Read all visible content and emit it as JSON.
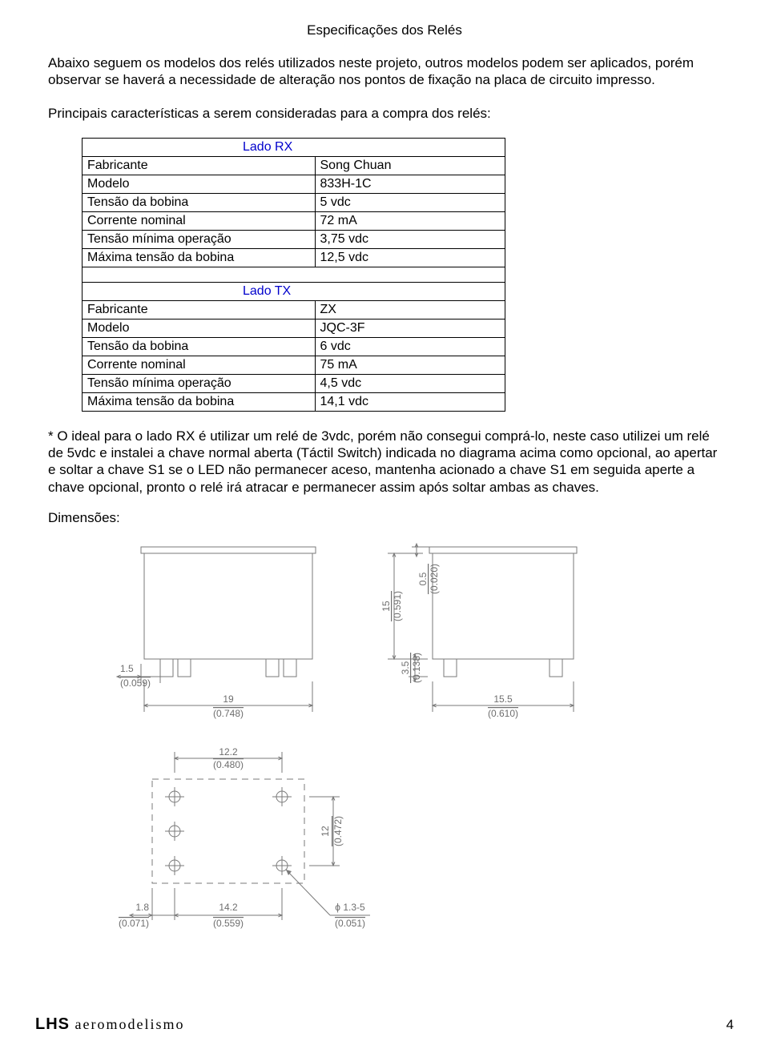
{
  "page": {
    "title": "Especificações dos Relés",
    "intro": "Abaixo seguem os modelos dos relés utilizados neste projeto, outros modelos podem ser aplicados, porém observar se haverá a necessidade de alteração nos pontos de fixação na placa de circuito impresso.",
    "lead": "Principais características a serem consideradas para a compra dos relés:",
    "note": "* O ideal para o lado RX é utilizar um relé de 3vdc, porém não consegui comprá-lo, neste caso utilizei um relé de 5vdc e instalei a chave normal aberta (Táctil Switch) indicada no diagrama acima como opcional, ao apertar e soltar a chave S1 se o LED não permanecer aceso, mantenha acionado a chave S1 em seguida aperte a chave opcional, pronto o relé irá atracar e permanecer assim após soltar ambas as chaves.",
    "dims_label": "Dimensões:",
    "page_number": "4"
  },
  "footer": {
    "brand_lhs": "LHS",
    "brand_rest": " aeromodelismo"
  },
  "tables": {
    "rx": {
      "header": "Lado RX",
      "rows": [
        {
          "label": "Fabricante",
          "value": "Song Chuan"
        },
        {
          "label": "Modelo",
          "value": "833H-1C"
        },
        {
          "label": "Tensão da bobina",
          "value": "5 vdc"
        },
        {
          "label": "Corrente nominal",
          "value": "72 mA"
        },
        {
          "label": "Tensão mínima operação",
          "value": "3,75 vdc"
        },
        {
          "label": "Máxima tensão da bobina",
          "value": "12,5 vdc"
        }
      ]
    },
    "tx": {
      "header": "Lado TX",
      "rows": [
        {
          "label": "Fabricante",
          "value": "ZX"
        },
        {
          "label": "Modelo",
          "value": "JQC-3F"
        },
        {
          "label": "Tensão da bobina",
          "value": "6 vdc"
        },
        {
          "label": "Corrente nominal",
          "value": "75 mA"
        },
        {
          "label": "Tensão mínima operação",
          "value": "4,5 vdc"
        },
        {
          "label": "Máxima tensão da bobina",
          "value": "14,1 vdc"
        }
      ]
    }
  },
  "drawings": {
    "stroke": "#7a7a7a",
    "text_color": "#6e6e6e",
    "font_size": 12,
    "front": {
      "body_w": 210,
      "body_h": 132,
      "lid_h": 8,
      "pin_w": 16,
      "pin_h": 22,
      "dim_19": "19",
      "dim_19_paren": "(0.748)",
      "dim_1_5": "1.5",
      "dim_1_5_paren": "(0.059)"
    },
    "side": {
      "body_w": 176,
      "body_h": 132,
      "dim_15": "15",
      "dim_15_paren": "(0.591)",
      "dim_0_5": "0.5",
      "dim_0_5_paren": "(0.020)",
      "dim_3_5": "3.5",
      "dim_3_5_paren": "(0.138)",
      "dim_15_5": "15.5",
      "dim_15_5_paren": "(0.610)"
    },
    "bottom": {
      "dim_12_2": "12.2",
      "dim_12_2_paren": "(0.480)",
      "dim_12": "12",
      "dim_12_paren": "(0.472)",
      "dim_1_8": "1.8",
      "dim_1_8_paren": "(0.071)",
      "dim_14_2": "14.2",
      "dim_14_2_paren": "(0.559)",
      "dim_phi": "ϕ 1.3-5",
      "dim_phi_paren": "(0.051)"
    }
  }
}
